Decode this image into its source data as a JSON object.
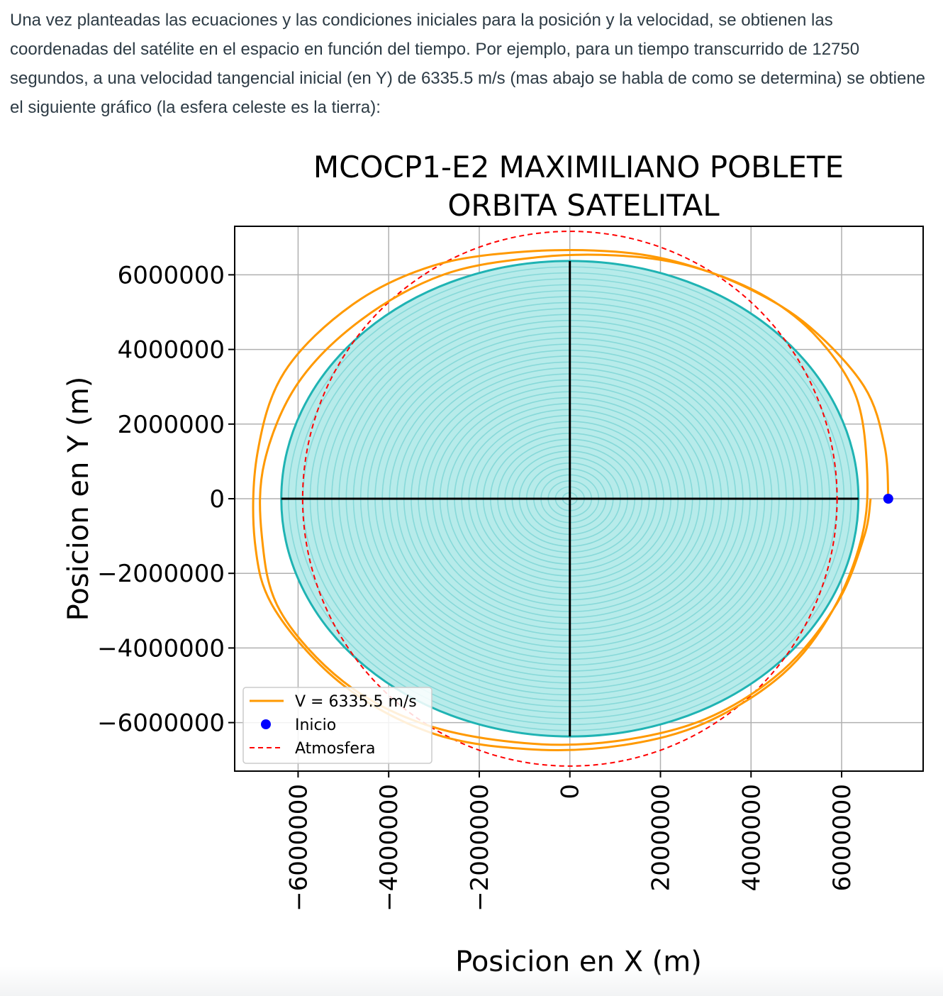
{
  "document": {
    "paragraph": "Una vez planteadas las ecuaciones y las condiciones iniciales para la posición y la velocidad, se obtienen las coordenadas del satélite en el espacio en función del tiempo. Por ejemplo, para un tiempo transcurrido de 12750 segundos, a una velocidad tangencial inicial (en Y) de 6335.5 m/s (mas abajo se habla de como se determina) se obtiene el siguiente gráfico (la esfera celeste es la tierra):"
  },
  "colors": {
    "earth_fill": "#b7ebea",
    "earth_rings": "#7fd6d6",
    "earth_edge": "#1fb3b3",
    "orbit": "#ff9900",
    "start_point": "#0000ff",
    "atmosphere": "#ff0000",
    "axes_lines": "#000000",
    "grid": "#b0b0b0"
  },
  "chart_data": {
    "type": "line",
    "title": "MCOCP1-E2 MAXIMILIANO POBLETE",
    "subtitle": "ORBITA SATELITAL",
    "xlabel": "Posicion en X (m)",
    "ylabel": "Posicion en Y (m)",
    "xlim": [
      -7400000,
      7800000
    ],
    "ylim": [
      -7300000,
      7300000
    ],
    "x_ticks": [
      -6000000,
      -4000000,
      -2000000,
      0,
      2000000,
      4000000,
      6000000
    ],
    "x_tick_labels": [
      "−6000000",
      "−4000000",
      "−2000000",
      "0",
      "2000000",
      "4000000",
      "6000000"
    ],
    "y_ticks": [
      6000000,
      4000000,
      2000000,
      0,
      -2000000,
      -4000000,
      -6000000
    ],
    "y_tick_labels": [
      "6000000",
      "4000000",
      "2000000",
      "0",
      "−2000000",
      "−4000000",
      "−6000000"
    ],
    "grid": true,
    "legend_position": "lower-left",
    "earth": {
      "center": [
        0,
        0
      ],
      "radius": 6371000,
      "rings": 40
    },
    "atmosphere": {
      "name": "Atmosfera",
      "radius": 6471000,
      "style": "dashed"
    },
    "start": {
      "name": "Inicio",
      "x": 7030000,
      "y": 0
    },
    "orbit": {
      "name": "V = 6335.5 m/s",
      "x": [
        7030000,
        6950000,
        6500000,
        5300000,
        4000000,
        2500000,
        1000000,
        -1000000,
        -3000000,
        -4800000,
        -6300000,
        -6900000,
        -6950000,
        -6500000,
        -5000000,
        -3000000,
        -800000,
        1200000,
        3000000,
        4700000,
        5800000,
        6450000,
        6560000,
        6300000,
        5400000,
        4200000,
        2600000,
        1000000,
        -800000,
        -2800000,
        -4600000,
        -6000000,
        -6740000,
        -6800000,
        -6400000,
        -5000000,
        -3200000,
        -1000000,
        1000000,
        3000000,
        4700000,
        5900000,
        6500000,
        6640000
      ],
      "y": [
        0,
        1400000,
        3000000,
        4600000,
        5600000,
        6300000,
        6620000,
        6620000,
        6250000,
        5200000,
        3400000,
        1200000,
        -1200000,
        -3000000,
        -5000000,
        -6300000,
        -6720000,
        -6600000,
        -6000000,
        -4700000,
        -3000000,
        -1000000,
        800000,
        2800000,
        4400000,
        5500000,
        6250000,
        6520000,
        6460000,
        6000000,
        4800000,
        3100000,
        1000000,
        -1000000,
        -3000000,
        -4900000,
        -6050000,
        -6550000,
        -6500000,
        -5900000,
        -4600000,
        -2800000,
        -1000000,
        0
      ]
    }
  }
}
